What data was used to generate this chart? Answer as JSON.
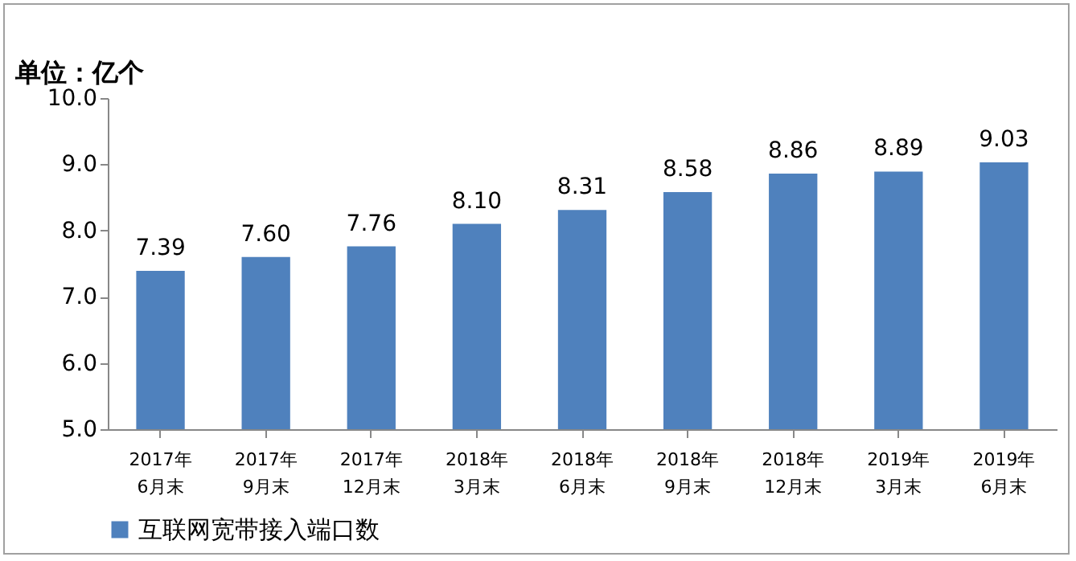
{
  "chart_data": {
    "type": "bar",
    "ylabel": "单位：亿个",
    "categories": [
      "2017年\n6月末",
      "2017年\n9月末",
      "2017年\n12月末",
      "2018年\n3月末",
      "2018年\n6月末",
      "2018年\n9月末",
      "2018年\n12月末",
      "2019年\n3月末",
      "2019年\n6月末"
    ],
    "series": [
      {
        "name": "互联网宽带接入端口数",
        "color": "#4f81bd",
        "values": [
          7.39,
          7.6,
          7.76,
          8.1,
          8.31,
          8.58,
          8.86,
          8.89,
          9.03
        ]
      }
    ],
    "value_labels": [
      "7.39",
      "7.60",
      "7.76",
      "8.10",
      "8.31",
      "8.58",
      "8.86",
      "8.89",
      "9.03"
    ],
    "ylim": [
      5,
      10
    ],
    "yticks": [
      {
        "value": 5,
        "label": "5.0"
      },
      {
        "value": 6,
        "label": "6.0"
      },
      {
        "value": 7,
        "label": "7.0"
      },
      {
        "value": 8,
        "label": "8.0"
      },
      {
        "value": 9,
        "label": "9.0"
      },
      {
        "value": 10,
        "label": "10.0"
      }
    ],
    "grid": false,
    "legend": "bottom"
  }
}
